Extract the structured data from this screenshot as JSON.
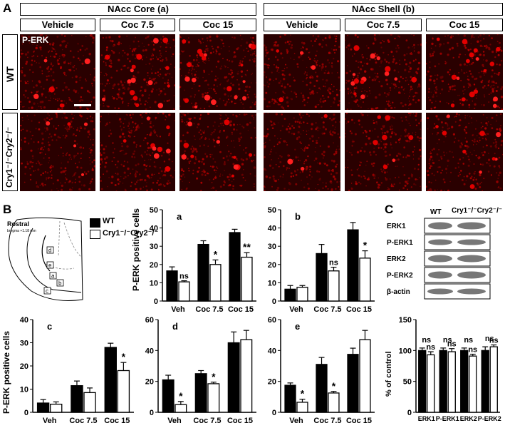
{
  "panel_A": {
    "letter": "A",
    "groups": [
      {
        "title": "NAcc Core (a)",
        "columns": [
          "Vehicle",
          "Coc 7.5",
          "Coc 15"
        ]
      },
      {
        "title": "NAcc Shell (b)",
        "columns": [
          "Vehicle",
          "Coc 7.5",
          "Coc 15"
        ]
      }
    ],
    "rows": [
      "WT",
      "Cry1⁻/⁻Cry2⁻/⁻"
    ],
    "stain_label": "P-ERK"
  },
  "panel_B": {
    "letter": "B",
    "schematic": {
      "title": "Rostral",
      "subtitle": "bregma +1.18 mm",
      "regions": [
        "d",
        "e",
        "a",
        "b",
        "c"
      ]
    },
    "legend": [
      {
        "label": "WT",
        "fill": "#000000"
      },
      {
        "label": "Cry1⁻/⁻Cry2⁻/⁻",
        "fill": "#ffffff"
      }
    ],
    "ylabel": "P-ERK positive cells"
  },
  "panel_C": {
    "letter": "C",
    "blot_columns": [
      "WT",
      "Cry1⁻/⁻Cry2⁻/⁻"
    ],
    "blot_rows": [
      "ERK1",
      "P-ERK1",
      "ERK2",
      "P-ERK2",
      "β-actin"
    ],
    "ylabel": "% of control"
  },
  "chart_data": [
    {
      "id": "a",
      "type": "bar",
      "label": "a",
      "categories": [
        "Veh",
        "Coc 7.5",
        "Coc 15"
      ],
      "ylim": [
        0,
        50
      ],
      "yticks": [
        0,
        10,
        20,
        30,
        40,
        50
      ],
      "series": [
        {
          "name": "WT",
          "values": [
            16.5,
            31,
            37.5
          ],
          "err": [
            2.2,
            2,
            1.8
          ]
        },
        {
          "name": "Cry1⁻/⁻Cry2⁻/⁻",
          "values": [
            10.5,
            20,
            24
          ],
          "err": [
            0.6,
            2.5,
            2.5
          ]
        }
      ],
      "annotations": [
        "ns",
        "*",
        "**"
      ]
    },
    {
      "id": "b",
      "type": "bar",
      "label": "b",
      "categories": [
        "Veh",
        "Coc 7.5",
        "Coc 15"
      ],
      "ylim": [
        0,
        50
      ],
      "yticks": [
        0,
        10,
        20,
        30,
        40,
        50
      ],
      "series": [
        {
          "name": "WT",
          "values": [
            6.5,
            26,
            39
          ],
          "err": [
            2,
            5,
            4
          ]
        },
        {
          "name": "Cry1⁻/⁻Cry2⁻/⁻",
          "values": [
            7.5,
            16.5,
            23.5
          ],
          "err": [
            1,
            2,
            4
          ]
        }
      ],
      "annotations": [
        "",
        "ns",
        "*"
      ]
    },
    {
      "id": "c",
      "type": "bar",
      "label": "c",
      "categories": [
        "Veh",
        "Coc 7.5",
        "Coc 15"
      ],
      "ylim": [
        0,
        40
      ],
      "yticks": [
        0,
        10,
        20,
        30,
        40
      ],
      "series": [
        {
          "name": "WT",
          "values": [
            4,
            11.5,
            28
          ],
          "err": [
            1.5,
            2,
            1.8
          ]
        },
        {
          "name": "Cry1⁻/⁻Cry2⁻/⁻",
          "values": [
            3.5,
            8.5,
            18
          ],
          "err": [
            1,
            2,
            3.5
          ]
        }
      ],
      "annotations": [
        "",
        "",
        "*"
      ]
    },
    {
      "id": "d",
      "type": "bar",
      "label": "d",
      "categories": [
        "Veh",
        "Coc 7.5",
        "Coc 15"
      ],
      "ylim": [
        0,
        60
      ],
      "yticks": [
        0,
        20,
        40,
        60
      ],
      "series": [
        {
          "name": "WT",
          "values": [
            21,
            25,
            45
          ],
          "err": [
            3,
            2,
            7
          ]
        },
        {
          "name": "Cry1⁻/⁻Cry2⁻/⁻",
          "values": [
            5,
            18.5,
            47
          ],
          "err": [
            2,
            1,
            6
          ]
        }
      ],
      "annotations": [
        "*",
        "*",
        ""
      ]
    },
    {
      "id": "e",
      "type": "bar",
      "label": "e",
      "categories": [
        "Veh",
        "Coc 7.5",
        "Coc 15"
      ],
      "ylim": [
        0,
        60
      ],
      "yticks": [
        0,
        20,
        40,
        60
      ],
      "series": [
        {
          "name": "WT",
          "values": [
            17.5,
            31,
            37.5
          ],
          "err": [
            1.5,
            4.5,
            4
          ]
        },
        {
          "name": "Cry1⁻/⁻Cry2⁻/⁻",
          "values": [
            6.5,
            12.5,
            47
          ],
          "err": [
            2,
            1,
            6
          ]
        }
      ],
      "annotations": [
        "*",
        "*",
        ""
      ]
    },
    {
      "id": "blot",
      "type": "bar",
      "label": "",
      "categories": [
        "ERK1",
        "P-ERK1",
        "ERK2",
        "P-ERK2"
      ],
      "ylim": [
        0,
        150
      ],
      "yticks": [
        0,
        50,
        100,
        150
      ],
      "series": [
        {
          "name": "WT",
          "values": [
            100,
            100,
            100,
            100
          ],
          "err": [
            4,
            4,
            4,
            6
          ]
        },
        {
          "name": "Cry1⁻/⁻Cry2⁻/⁻",
          "values": [
            93,
            98,
            91,
            106
          ],
          "err": [
            5,
            5,
            3,
            3
          ]
        }
      ],
      "annotations": [
        "ns",
        "ns",
        "ns",
        "ns"
      ]
    }
  ]
}
